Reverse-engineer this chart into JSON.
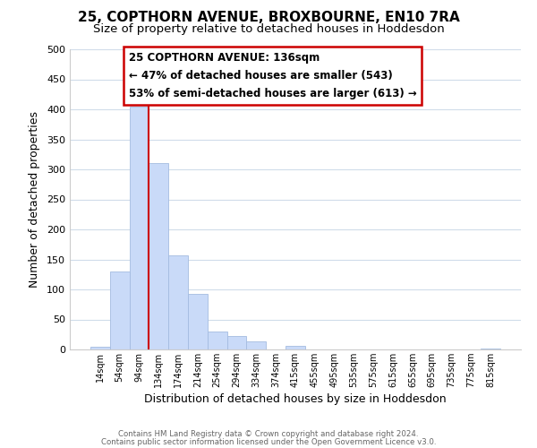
{
  "title": "25, COPTHORN AVENUE, BROXBOURNE, EN10 7RA",
  "subtitle": "Size of property relative to detached houses in Hoddesdon",
  "bar_labels": [
    "14sqm",
    "54sqm",
    "94sqm",
    "134sqm",
    "174sqm",
    "214sqm",
    "254sqm",
    "294sqm",
    "334sqm",
    "374sqm",
    "415sqm",
    "455sqm",
    "495sqm",
    "535sqm",
    "575sqm",
    "615sqm",
    "655sqm",
    "695sqm",
    "735sqm",
    "775sqm",
    "815sqm"
  ],
  "bar_values": [
    5,
    130,
    405,
    310,
    157,
    93,
    30,
    22,
    14,
    0,
    6,
    0,
    0,
    0,
    0,
    0,
    0,
    0,
    0,
    0,
    2
  ],
  "bar_color": "#c9daf8",
  "bar_edgecolor": "#a4bce0",
  "vline_color": "#cc0000",
  "xlabel": "Distribution of detached houses by size in Hoddesdon",
  "ylabel": "Number of detached properties",
  "ylim": [
    0,
    500
  ],
  "yticks": [
    0,
    50,
    100,
    150,
    200,
    250,
    300,
    350,
    400,
    450,
    500
  ],
  "annotation_title": "25 COPTHORN AVENUE: 136sqm",
  "annotation_line1": "← 47% of detached houses are smaller (543)",
  "annotation_line2": "53% of semi-detached houses are larger (613) →",
  "annotation_box_color": "#ffffff",
  "annotation_box_edgecolor": "#cc0000",
  "footer_line1": "Contains HM Land Registry data © Crown copyright and database right 2024.",
  "footer_line2": "Contains public sector information licensed under the Open Government Licence v3.0.",
  "background_color": "#ffffff",
  "grid_color": "#d0dcea",
  "title_fontsize": 11,
  "subtitle_fontsize": 9.5
}
